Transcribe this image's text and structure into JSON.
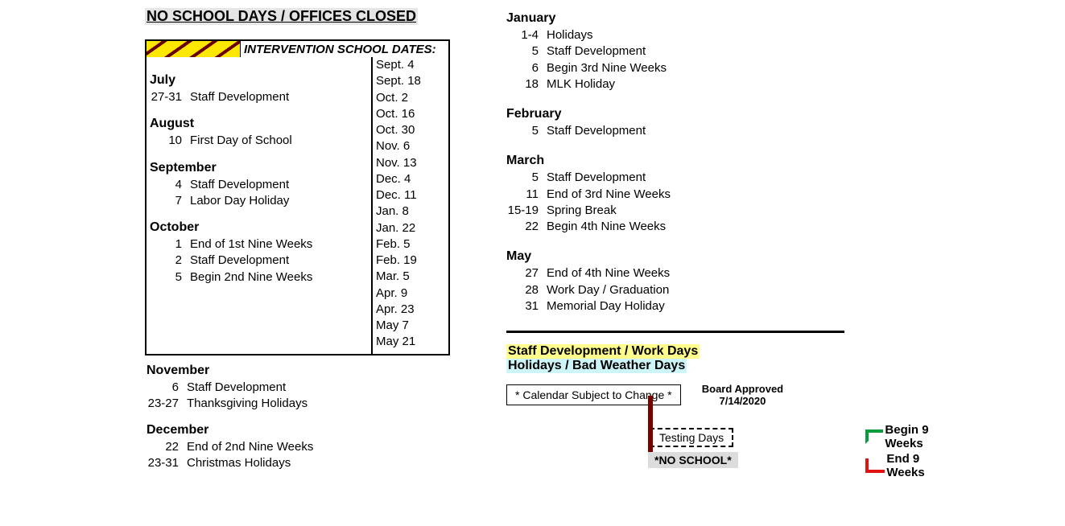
{
  "title": "NO SCHOOL DAYS / OFFICES CLOSED",
  "intervention_title": "INTERVENTION SCHOOL DATES:",
  "intervention_dates": [
    "Sept. 4",
    "Sept. 18",
    "Oct. 2",
    "Oct. 16",
    "Oct. 30",
    "Nov. 6",
    "Nov. 13",
    "Dec. 4",
    "Dec. 11",
    "Jan. 8",
    "Jan. 22",
    "Feb. 5",
    "Feb. 19",
    "Mar. 5",
    "Apr. 9",
    "Apr. 23",
    "May 7",
    "May 21"
  ],
  "left_in_box": [
    {
      "month": "July",
      "events": [
        {
          "d": "27-31",
          "t": "Staff Development"
        }
      ]
    },
    {
      "month": "August",
      "events": [
        {
          "d": "10",
          "t": "First Day of School"
        }
      ]
    },
    {
      "month": "September",
      "events": [
        {
          "d": "4",
          "t": "Staff Development"
        },
        {
          "d": "7",
          "t": "Labor Day Holiday"
        }
      ]
    },
    {
      "month": "October",
      "events": [
        {
          "d": "1",
          "t": "End of 1st Nine Weeks"
        },
        {
          "d": "2",
          "t": "Staff Development"
        },
        {
          "d": "5",
          "t": "Begin 2nd Nine Weeks"
        }
      ]
    }
  ],
  "left_after_box": [
    {
      "month": "November",
      "events": [
        {
          "d": "6",
          "t": "Staff Development"
        },
        {
          "d": "23-27",
          "t": "Thanksgiving Holidays"
        }
      ]
    },
    {
      "month": "December",
      "events": [
        {
          "d": "22",
          "t": "End of 2nd Nine Weeks"
        },
        {
          "d": "23-31",
          "t": "Christmas Holidays"
        }
      ]
    }
  ],
  "right": [
    {
      "month": "January",
      "events": [
        {
          "d": "1-4",
          "t": "Holidays"
        },
        {
          "d": "5",
          "t": "Staff Development"
        },
        {
          "d": "6",
          "t": "Begin 3rd Nine Weeks"
        },
        {
          "d": "18",
          "t": "MLK Holiday"
        }
      ]
    },
    {
      "month": "February",
      "events": [
        {
          "d": "5",
          "t": "Staff Development"
        }
      ]
    },
    {
      "month": "March",
      "events": [
        {
          "d": "5",
          "t": "Staff Development"
        },
        {
          "d": "11",
          "t": "End of 3rd Nine Weeks"
        },
        {
          "d": "15-19",
          "t": "Spring Break"
        },
        {
          "d": "22",
          "t": "Begin 4th Nine Weeks"
        }
      ]
    },
    {
      "month": "May",
      "events": [
        {
          "d": "27",
          "t": "End of 4th Nine Weeks"
        },
        {
          "d": "28",
          "t": "Work Day / Graduation"
        },
        {
          "d": "31",
          "t": "Memorial Day Holiday"
        }
      ]
    }
  ],
  "legend": {
    "staff": "Staff Development / Work Days",
    "holidays": "Holidays / Bad Weather Days",
    "subject": "* Calendar Subject to Change *",
    "approved_l1": "Board Approved",
    "approved_l2": "7/14/2020",
    "testing": "Testing Days",
    "noschool": "*NO SCHOOL*",
    "begin9": "Begin 9 Weeks",
    "end9": "End 9 Weeks"
  },
  "colors": {
    "yellow": "#fffc8c",
    "blue": "#cdf4f7",
    "green": "#089c3e",
    "red": "#e01212",
    "darkred": "#7a0000",
    "grey": "#dcdcdc"
  }
}
